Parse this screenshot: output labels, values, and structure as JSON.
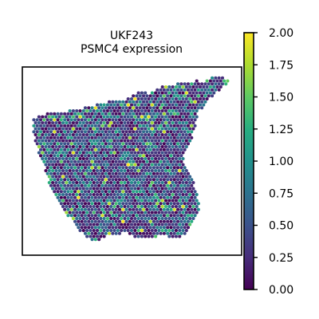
{
  "chart_data": {
    "type": "scatter",
    "subtype": "spatial-transcriptomics-hex-spots",
    "title_lines": [
      "UKF243",
      "PSMC4 expression"
    ],
    "xlabel": "",
    "ylabel": "",
    "axes_ticks": "none",
    "grid": false,
    "legend": "none",
    "colorbar": {
      "position": "right",
      "colormap": "viridis",
      "range": [
        0,
        2.0
      ],
      "ticks": [
        0,
        0.25,
        0.5,
        0.75,
        1.0,
        1.25,
        1.5,
        1.75,
        2.0
      ],
      "tick_labels": [
        "0.00",
        "0.25",
        "0.50",
        "0.75",
        "1.00",
        "1.25",
        "1.50",
        "1.75",
        "2.00"
      ]
    },
    "value_distribution": {
      "dominant_range": [
        0.0,
        0.8
      ],
      "typical": 0.5,
      "max_observed": 2.0
    }
  }
}
